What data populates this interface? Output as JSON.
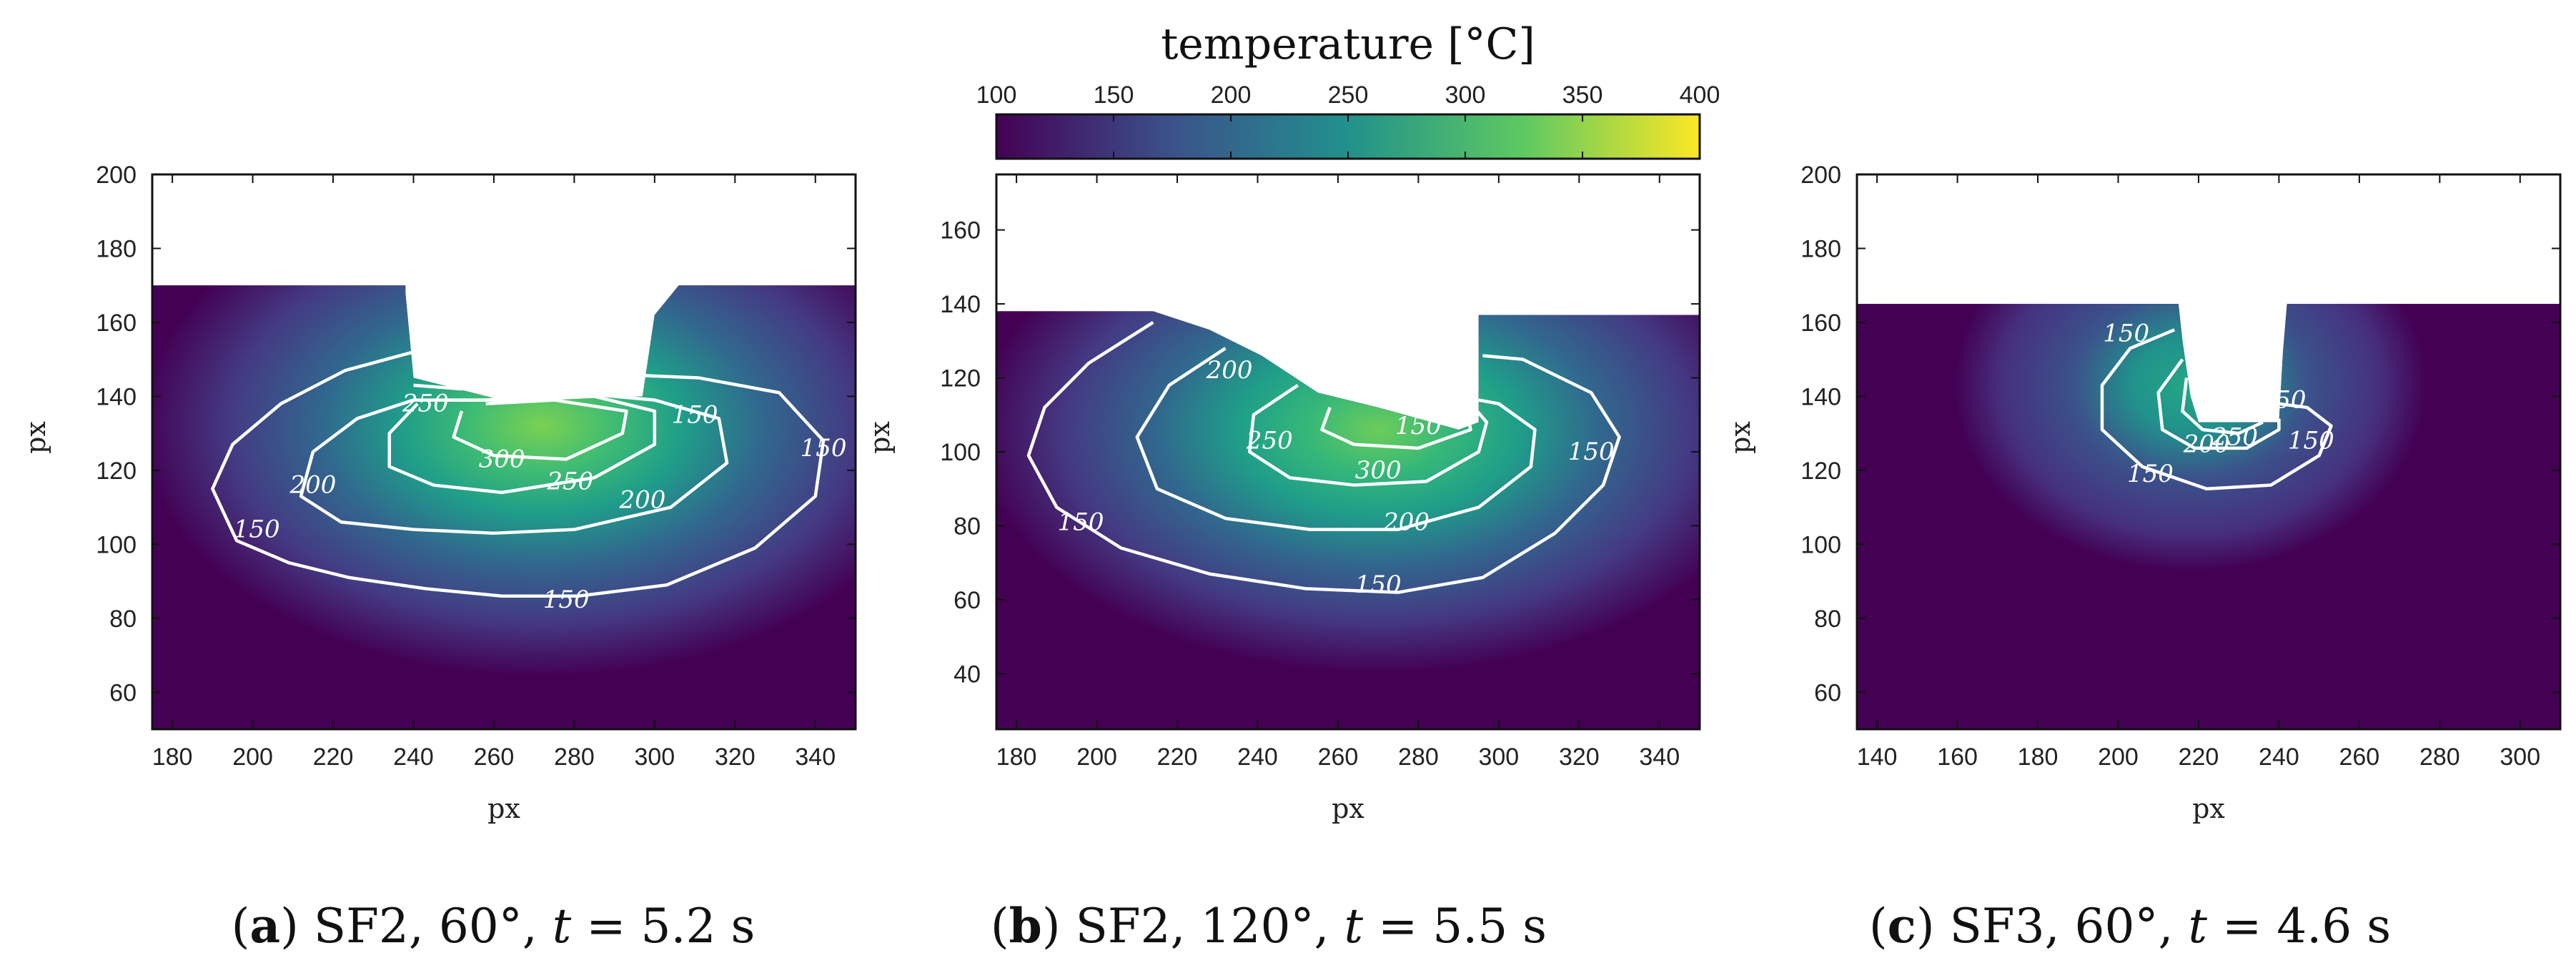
{
  "colorbar": {
    "title": "temperature [°C]",
    "ticks": [
      100,
      150,
      200,
      250,
      300,
      350,
      400
    ],
    "range": [
      100,
      400
    ],
    "colormap": [
      "#440154",
      "#3b528b",
      "#21918c",
      "#5ec962",
      "#fde725"
    ]
  },
  "chart_data": [
    {
      "type": "heatmap",
      "id": "a",
      "caption": {
        "letter": "a",
        "text_mid": "SF2, 60°, ",
        "var": "t",
        "text_end": " = 5.2 s"
      },
      "xlabel": "px",
      "ylabel": "px",
      "xlim": [
        175,
        350
      ],
      "ylim": [
        50,
        200
      ],
      "xticks": [
        180,
        200,
        220,
        240,
        260,
        280,
        300,
        320,
        340
      ],
      "yticks": [
        60,
        80,
        100,
        120,
        140,
        160,
        180,
        200
      ],
      "surface": [
        [
          175,
          170
        ],
        [
          238,
          170
        ],
        [
          238,
          168
        ],
        [
          240,
          145
        ],
        [
          262,
          139
        ],
        [
          297,
          140
        ],
        [
          300,
          162
        ],
        [
          306,
          170
        ],
        [
          350,
          170
        ]
      ],
      "hot_center": [
        272,
        132
      ],
      "contours": [
        {
          "level": 150,
          "label": "150",
          "points": [
            [
              240,
              152
            ],
            [
              223,
              147
            ],
            [
              207,
              138
            ],
            [
              195,
              127
            ],
            [
              190,
              115
            ],
            [
              196,
              101
            ],
            [
              209,
              95
            ],
            [
              224,
              91
            ],
            [
              243,
              88
            ],
            [
              262,
              86
            ],
            [
              281,
              86
            ],
            [
              303,
              89
            ],
            [
              325,
              99
            ],
            [
              340,
              113
            ],
            [
              342,
              128
            ],
            [
              331,
              141
            ],
            [
              311,
              145
            ],
            [
              289,
              146
            ],
            [
              270,
              144
            ],
            [
              252,
              142
            ],
            [
              240,
              143
            ]
          ]
        },
        {
          "level": 200,
          "label": "200",
          "points": [
            [
              240,
              139
            ],
            [
              226,
              134
            ],
            [
              215,
              125
            ],
            [
              212,
              113
            ],
            [
              222,
              106
            ],
            [
              240,
              104
            ],
            [
              260,
              103
            ],
            [
              280,
              104
            ],
            [
              304,
              110
            ],
            [
              318,
              122
            ],
            [
              316,
              134
            ],
            [
              300,
              139
            ],
            [
              280,
              141
            ],
            [
              258,
              139
            ],
            [
              240,
              139
            ]
          ]
        },
        {
          "level": 250,
          "label": "250",
          "points": [
            [
              241,
              138
            ],
            [
              234,
              130
            ],
            [
              234,
              121
            ],
            [
              245,
              116
            ],
            [
              262,
              114
            ],
            [
              285,
              118
            ],
            [
              300,
              127
            ],
            [
              300,
              136
            ],
            [
              285,
              140
            ],
            [
              265,
              139
            ],
            [
              248,
              139
            ]
          ]
        },
        {
          "level": 300,
          "label": "300",
          "points": [
            [
              252,
              136
            ],
            [
              250,
              129
            ],
            [
              260,
              124
            ],
            [
              278,
              123
            ],
            [
              292,
              130
            ],
            [
              293,
              136
            ],
            [
              275,
              139
            ],
            [
              258,
              138
            ]
          ]
        }
      ],
      "contour_labels": [
        {
          "text": "150",
          "at": [
            201,
            104
          ]
        },
        {
          "text": "150",
          "at": [
            310,
            135
          ]
        },
        {
          "text": "150",
          "at": [
            278,
            85
          ]
        },
        {
          "text": "150",
          "at": [
            342,
            126
          ]
        },
        {
          "text": "200",
          "at": [
            215,
            116
          ]
        },
        {
          "text": "200",
          "at": [
            297,
            112
          ]
        },
        {
          "text": "250",
          "at": [
            279,
            117
          ]
        },
        {
          "text": "250",
          "at": [
            243,
            138
          ]
        },
        {
          "text": "300",
          "at": [
            262,
            123
          ]
        }
      ]
    },
    {
      "type": "heatmap",
      "id": "b",
      "caption": {
        "letter": "b",
        "text_mid": "SF2, 120°, ",
        "var": "t",
        "text_end": " = 5.5 s"
      },
      "xlabel": "px",
      "ylabel": "px",
      "xlim": [
        175,
        350
      ],
      "ylim": [
        25,
        175
      ],
      "xticks": [
        180,
        200,
        220,
        240,
        260,
        280,
        300,
        320,
        340
      ],
      "yticks": [
        40,
        60,
        80,
        100,
        120,
        140,
        160
      ],
      "surface": [
        [
          175,
          138
        ],
        [
          214,
          138
        ],
        [
          228,
          133
        ],
        [
          241,
          126
        ],
        [
          255,
          116
        ],
        [
          270,
          112
        ],
        [
          290,
          106
        ],
        [
          295,
          108
        ],
        [
          295,
          137
        ],
        [
          350,
          137
        ]
      ],
      "hot_center": [
        270,
        106
      ],
      "contours": [
        {
          "level": 150,
          "label": "150",
          "points": [
            [
              214,
              135
            ],
            [
              198,
              124
            ],
            [
              187,
              112
            ],
            [
              183,
              99
            ],
            [
              190,
              85
            ],
            [
              206,
              74
            ],
            [
              228,
              67
            ],
            [
              252,
              63
            ],
            [
              275,
              62
            ],
            [
              296,
              66
            ],
            [
              314,
              78
            ],
            [
              326,
              91
            ],
            [
              330,
              104
            ],
            [
              323,
              116
            ],
            [
              306,
              125
            ],
            [
              296,
              126
            ]
          ]
        },
        {
          "level": 200,
          "label": "200",
          "points": [
            [
              232,
              128
            ],
            [
              218,
              118
            ],
            [
              210,
              104
            ],
            [
              215,
              90
            ],
            [
              232,
              82
            ],
            [
              253,
              79
            ],
            [
              275,
              79
            ],
            [
              295,
              85
            ],
            [
              308,
              96
            ],
            [
              309,
              106
            ],
            [
              300,
              113
            ],
            [
              295,
              114
            ]
          ]
        },
        {
          "level": 250,
          "label": "250",
          "points": [
            [
              250,
              118
            ],
            [
              239,
              110
            ],
            [
              238,
              100
            ],
            [
              248,
              93
            ],
            [
              264,
              91
            ],
            [
              282,
              92
            ],
            [
              295,
              100
            ],
            [
              297,
              108
            ],
            [
              293,
              113
            ]
          ]
        },
        {
          "level": 300,
          "label": "300",
          "points": [
            [
              258,
              112
            ],
            [
              256,
              106
            ],
            [
              264,
              102
            ],
            [
              280,
              101
            ],
            [
              293,
              106
            ],
            [
              292,
              111
            ],
            [
              280,
              112
            ],
            [
              268,
              113
            ]
          ]
        }
      ],
      "contour_labels": [
        {
          "text": "150",
          "at": [
            196,
            81
          ]
        },
        {
          "text": "150",
          "at": [
            270,
            64
          ]
        },
        {
          "text": "150",
          "at": [
            323,
            100
          ]
        },
        {
          "text": "200",
          "at": [
            233,
            122
          ]
        },
        {
          "text": "200",
          "at": [
            277,
            81
          ]
        },
        {
          "text": "250",
          "at": [
            243,
            103
          ]
        },
        {
          "text": "300",
          "at": [
            270,
            95
          ]
        },
        {
          "text": "150",
          "at": [
            280,
            107
          ]
        }
      ]
    },
    {
      "type": "heatmap",
      "id": "c",
      "caption": {
        "letter": "c",
        "text_mid": "SF3, 60°, ",
        "var": "t",
        "text_end": " = 4.6 s"
      },
      "xlabel": "px",
      "ylabel": "px",
      "xlim": [
        135,
        310
      ],
      "ylim": [
        50,
        200
      ],
      "xticks": [
        140,
        160,
        180,
        200,
        220,
        240,
        260,
        280,
        300
      ],
      "yticks": [
        60,
        80,
        100,
        120,
        140,
        160,
        180,
        200
      ],
      "surface": [
        [
          135,
          165
        ],
        [
          215,
          165
        ],
        [
          216,
          155
        ],
        [
          218,
          140
        ],
        [
          220,
          133
        ],
        [
          240,
          133
        ],
        [
          241,
          152
        ],
        [
          242,
          165
        ],
        [
          310,
          165
        ]
      ],
      "hot_center": [
        218,
        143
      ],
      "contours": [
        {
          "level": 150,
          "label": "150",
          "points": [
            [
              214,
              158
            ],
            [
              203,
              153
            ],
            [
              196,
              143
            ],
            [
              196,
              131
            ],
            [
              206,
              121
            ],
            [
              222,
              115
            ],
            [
              238,
              116
            ],
            [
              250,
              124
            ],
            [
              253,
              132
            ],
            [
              247,
              137
            ],
            [
              240,
              138
            ]
          ]
        },
        {
          "level": 200,
          "label": "200",
          "points": [
            [
              216,
              150
            ],
            [
              210,
              141
            ],
            [
              211,
              131
            ],
            [
              219,
              126
            ],
            [
              232,
              126
            ],
            [
              240,
              131
            ],
            [
              240,
              134
            ]
          ]
        },
        {
          "level": 250,
          "label": "250",
          "points": [
            [
              217,
              145
            ],
            [
              216,
              136
            ],
            [
              221,
              131
            ],
            [
              230,
              130
            ],
            [
              236,
              133
            ]
          ]
        }
      ],
      "contour_labels": [
        {
          "text": "150",
          "at": [
            202,
            157
          ]
        },
        {
          "text": "150",
          "at": [
            208,
            119
          ]
        },
        {
          "text": "150",
          "at": [
            248,
            128
          ]
        },
        {
          "text": "150",
          "at": [
            241,
            139
          ]
        },
        {
          "text": "200",
          "at": [
            222,
            127
          ]
        },
        {
          "text": "250",
          "at": [
            229,
            129
          ]
        }
      ]
    }
  ]
}
